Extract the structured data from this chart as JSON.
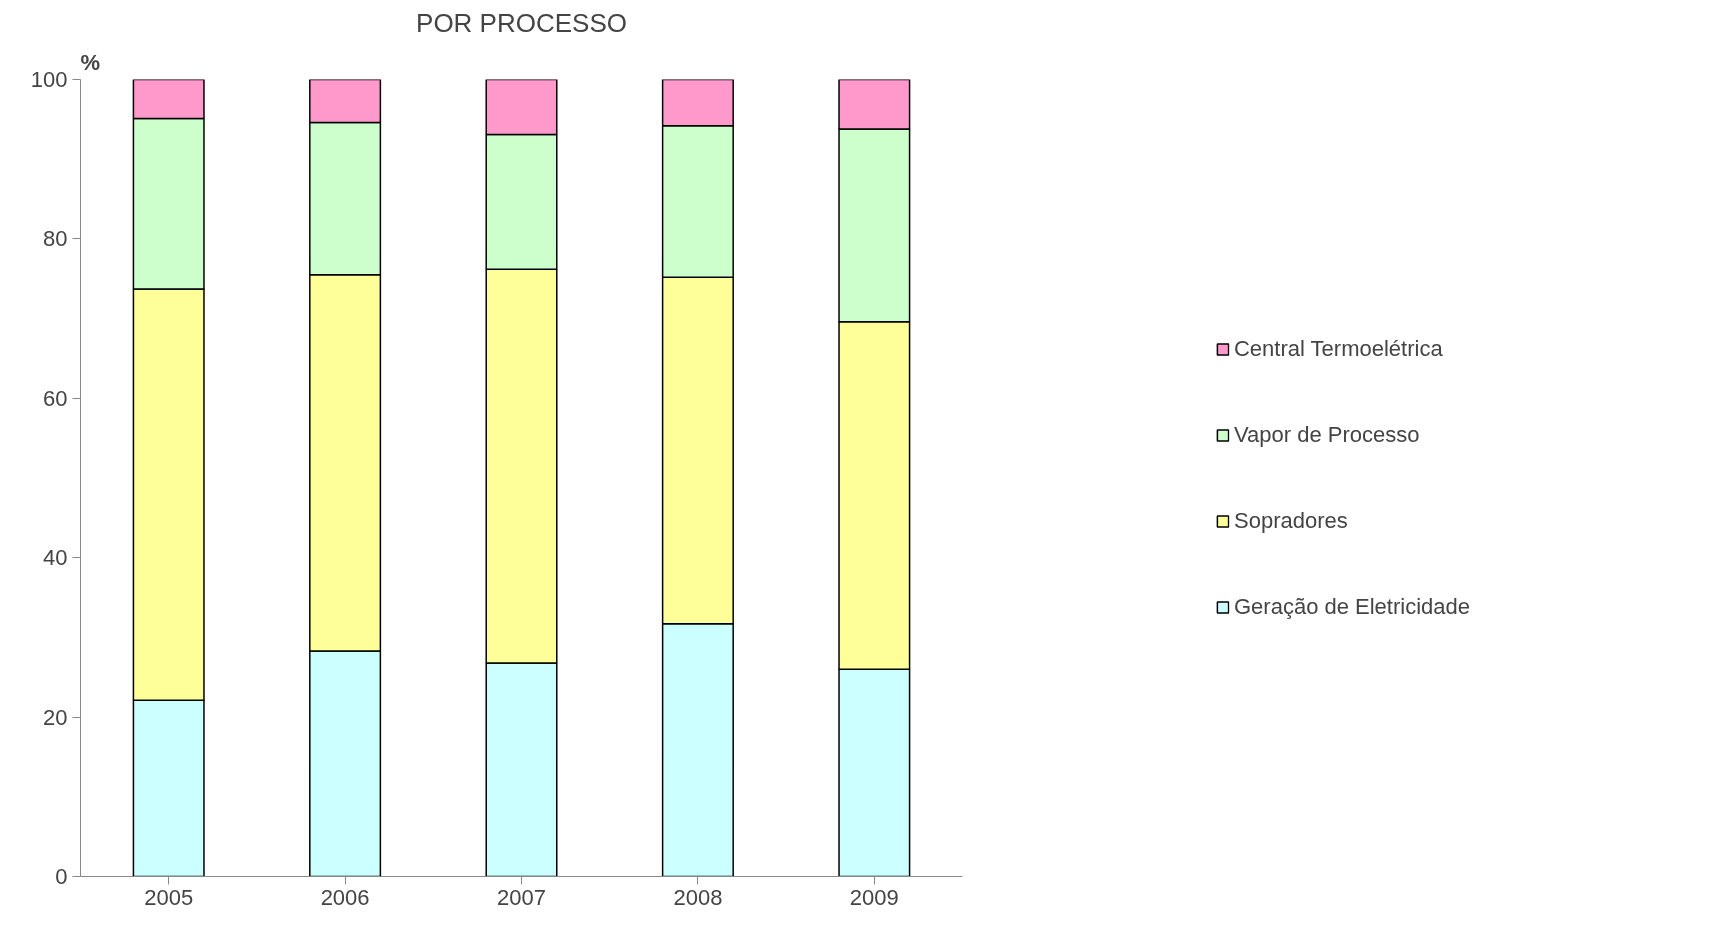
{
  "chart_data": {
    "type": "bar",
    "title": "POR PROCESSO",
    "ylabel": "%",
    "stacked": true,
    "categories": [
      "2005",
      "2006",
      "2007",
      "2008",
      "2009"
    ],
    "series": [
      {
        "name": "Geração de Eletricidade",
        "color": "#ccffff",
        "values": [
          22.1,
          28.3,
          26.8,
          31.7,
          26.0
        ]
      },
      {
        "name": "Sopradores",
        "color": "#ffff99",
        "values": [
          51.6,
          47.2,
          49.4,
          43.5,
          43.6
        ]
      },
      {
        "name": "Vapor de Processo",
        "color": "#ccffcc",
        "values": [
          21.4,
          19.1,
          16.9,
          19.0,
          24.2
        ]
      },
      {
        "name": "Central Termoelétrica",
        "color": "#ff99cc",
        "values": [
          4.9,
          5.4,
          6.9,
          5.8,
          6.2
        ]
      }
    ],
    "ylim": [
      0,
      100
    ],
    "yticks": [
      0,
      20,
      40,
      60,
      80,
      100
    ],
    "grid": false,
    "legend": "right"
  }
}
